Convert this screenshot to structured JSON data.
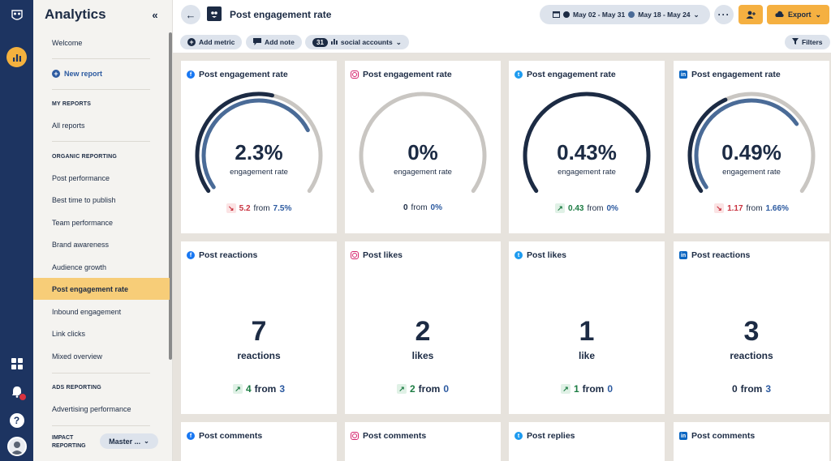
{
  "sidebar": {
    "title": "Analytics",
    "welcome": "Welcome",
    "new_report": "New report",
    "my_reports_heading": "MY REPORTS",
    "all_reports": "All reports",
    "organic_heading": "ORGANIC REPORTING",
    "organic_items": [
      "Post performance",
      "Best time to publish",
      "Team performance",
      "Brand awareness",
      "Audience growth",
      "Post engagement rate",
      "Inbound engagement",
      "Link clicks",
      "Mixed overview"
    ],
    "active_item": "Post engagement rate",
    "ads_heading": "ADS REPORTING",
    "ads_items": [
      "Advertising performance"
    ],
    "impact_heading": "IMPACT REPORTING",
    "impact_select": "Master ..."
  },
  "header": {
    "title": "Post engagement rate",
    "date_range_primary": "May 02 - May 31",
    "date_range_compare": "May 18 - May 24",
    "export_label": "Export"
  },
  "toolbar": {
    "add_metric": "Add metric",
    "add_note": "Add note",
    "accounts_count": "31",
    "accounts_label": "social accounts",
    "filters": "Filters"
  },
  "colors": {
    "accent": "#f5b041",
    "navy": "#1d3461",
    "gauge_current": "#1c2b44",
    "gauge_compare": "#4a6b97",
    "gauge_track": "#c9c6c2",
    "down": "#c9323f",
    "up": "#1c7c43"
  },
  "cards_row1": [
    {
      "network": "facebook",
      "icon": "facebook-icon",
      "title": "Post engagement rate",
      "value": "2.3%",
      "label": "engagement rate",
      "trend": "down",
      "change": "5.2",
      "from": "from",
      "prev": "7.5%",
      "gauge_current_pct": 0.55,
      "gauge_compare_pct": 0.75
    },
    {
      "network": "instagram",
      "icon": "instagram-icon",
      "title": "Post engagement rate",
      "value": "0%",
      "label": "engagement rate",
      "trend": "none",
      "change": "0",
      "from": "from",
      "prev": "0%",
      "gauge_current_pct": 0,
      "gauge_compare_pct": 0
    },
    {
      "network": "twitter",
      "icon": "twitter-icon",
      "title": "Post engagement rate",
      "value": "0.43%",
      "label": "engagement rate",
      "trend": "up",
      "change": "0.43",
      "from": "from",
      "prev": "0%",
      "gauge_current_pct": 1.0,
      "gauge_compare_pct": 0
    },
    {
      "network": "linkedin",
      "icon": "linkedin-icon",
      "title": "Post engagement rate",
      "value": "0.49%",
      "label": "engagement rate",
      "trend": "down",
      "change": "1.17",
      "from": "from",
      "prev": "1.66%",
      "gauge_current_pct": 0.4,
      "gauge_compare_pct": 0.72
    }
  ],
  "cards_row2": [
    {
      "network": "facebook",
      "icon": "facebook-icon",
      "title": "Post reactions",
      "value": "7",
      "label": "reactions",
      "trend": "up",
      "change": "4",
      "from": "from",
      "prev": "3"
    },
    {
      "network": "instagram",
      "icon": "instagram-icon",
      "title": "Post likes",
      "value": "2",
      "label": "likes",
      "trend": "up",
      "change": "2",
      "from": "from",
      "prev": "0"
    },
    {
      "network": "twitter",
      "icon": "twitter-icon",
      "title": "Post likes",
      "value": "1",
      "label": "like",
      "trend": "up",
      "change": "1",
      "from": "from",
      "prev": "0"
    },
    {
      "network": "linkedin",
      "icon": "linkedin-icon",
      "title": "Post reactions",
      "value": "3",
      "label": "reactions",
      "trend": "none",
      "change": "0",
      "from": "from",
      "prev": "3"
    }
  ],
  "cards_row3": [
    {
      "network": "facebook",
      "icon": "facebook-icon",
      "title": "Post comments"
    },
    {
      "network": "instagram",
      "icon": "instagram-icon",
      "title": "Post comments"
    },
    {
      "network": "twitter",
      "icon": "twitter-icon",
      "title": "Post replies"
    },
    {
      "network": "linkedin",
      "icon": "linkedin-icon",
      "title": "Post comments"
    }
  ]
}
